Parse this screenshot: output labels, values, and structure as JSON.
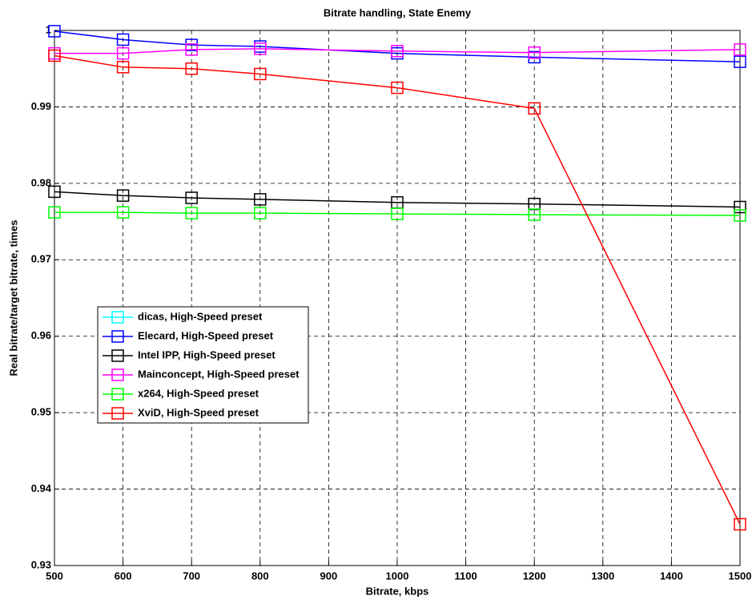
{
  "chart_data": {
    "type": "line",
    "title": "Bitrate handling, State Enemy",
    "x_label": "Bitrate, kbps",
    "y_label": "Real bitrate/target bitrate, times",
    "x": [
      500,
      600,
      700,
      800,
      1000,
      1200,
      1500
    ],
    "series": [
      {
        "name": "dicas, High-Speed preset",
        "color": "#00ffff",
        "values": [
          null,
          null,
          null,
          null,
          null,
          null,
          null
        ]
      },
      {
        "name": "Elecard, High-Speed preset",
        "color": "#0000ff",
        "values": [
          0.9999,
          0.9988,
          0.9981,
          0.9979,
          0.997,
          0.9965,
          0.9959
        ]
      },
      {
        "name": "Intel IPP, High-Speed preset",
        "color": "#000000",
        "values": [
          0.9789,
          0.9784,
          0.9781,
          0.9779,
          0.9775,
          0.9773,
          0.9769
        ]
      },
      {
        "name": "Mainconcept, High-Speed preset",
        "color": "#ff00ff",
        "values": [
          0.997,
          0.997,
          0.9975,
          0.9976,
          0.9973,
          0.9971,
          0.9975
        ]
      },
      {
        "name": "x264, High-Speed preset",
        "color": "#00ff00",
        "values": [
          0.9762,
          0.9762,
          0.9761,
          0.9761,
          0.976,
          0.9759,
          0.9758
        ]
      },
      {
        "name": "XviD, High-Speed preset",
        "color": "#ff0000",
        "values": [
          0.9967,
          0.9952,
          0.995,
          0.9943,
          0.9925,
          0.9898,
          0.9354
        ]
      }
    ],
    "xlim": [
      500,
      1500
    ],
    "xticks": [
      500,
      600,
      700,
      800,
      900,
      1000,
      1100,
      1200,
      1300,
      1400,
      1500
    ],
    "ylim": [
      0.93,
      1
    ],
    "yticks": [
      0.93,
      0.94,
      0.95,
      0.96,
      0.97,
      0.98,
      0.99,
      1
    ],
    "grid": true
  }
}
